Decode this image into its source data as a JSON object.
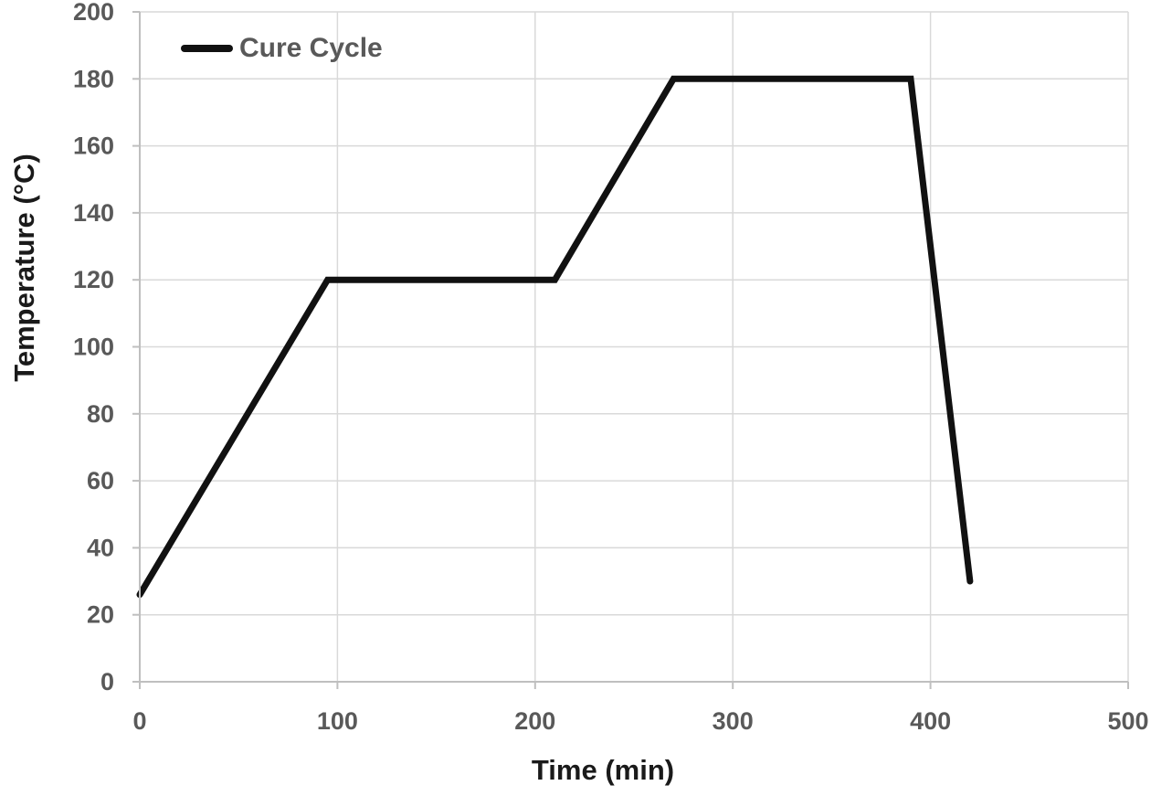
{
  "chart_data": {
    "type": "line",
    "title": "",
    "xlabel": "Time (min)",
    "ylabel": "Temperature (°C)",
    "xlim": [
      0,
      500
    ],
    "ylim": [
      0,
      200
    ],
    "xticks": [
      0,
      100,
      200,
      300,
      400,
      500
    ],
    "yticks": [
      0,
      20,
      40,
      60,
      80,
      100,
      120,
      140,
      160,
      180,
      200
    ],
    "grid": true,
    "legend_position": "top-left-inside",
    "series": [
      {
        "name": "Cure Cycle",
        "color": "#111111",
        "stroke_width": 7,
        "points": [
          [
            0,
            26
          ],
          [
            95,
            120
          ],
          [
            210,
            120
          ],
          [
            270,
            180
          ],
          [
            390,
            180
          ],
          [
            420,
            30
          ]
        ]
      }
    ],
    "colors": {
      "background": "#ffffff",
      "gridline": "#d9d9d9",
      "axis": "#bfbfbf",
      "tick_label": "#595959",
      "axis_title": "#1a1a1a",
      "legend_text": "#595959"
    }
  }
}
